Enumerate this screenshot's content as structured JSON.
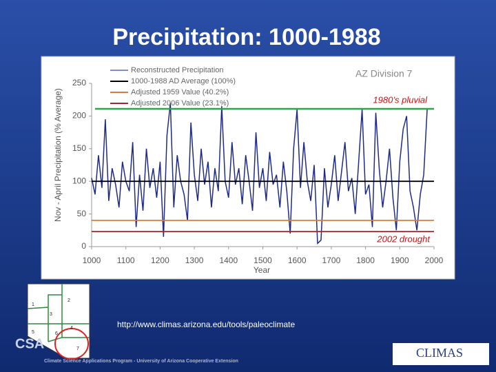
{
  "chart_data": {
    "type": "line",
    "title": "Precipitation: 1000-1988",
    "subtitle": "AZ Division 7",
    "x_label": "Year",
    "y_label": "Nov - April Precipitation (% Average)",
    "xlim": [
      1000,
      2000
    ],
    "xticks": [
      1000,
      1100,
      1200,
      1300,
      1400,
      1500,
      1600,
      1700,
      1800,
      1900,
      2000
    ],
    "ylim": [
      0,
      250
    ],
    "yticks": [
      0,
      50,
      100,
      150,
      200,
      250
    ],
    "x": [
      1000,
      1010,
      1020,
      1030,
      1040,
      1050,
      1060,
      1070,
      1080,
      1090,
      1100,
      1110,
      1120,
      1130,
      1140,
      1150,
      1160,
      1170,
      1180,
      1190,
      1200,
      1210,
      1220,
      1230,
      1240,
      1250,
      1260,
      1270,
      1280,
      1290,
      1300,
      1310,
      1320,
      1330,
      1340,
      1350,
      1360,
      1370,
      1380,
      1390,
      1400,
      1410,
      1420,
      1430,
      1440,
      1450,
      1460,
      1470,
      1480,
      1490,
      1500,
      1510,
      1520,
      1530,
      1540,
      1550,
      1560,
      1570,
      1580,
      1590,
      1600,
      1610,
      1620,
      1630,
      1640,
      1650,
      1660,
      1670,
      1680,
      1690,
      1700,
      1710,
      1720,
      1730,
      1740,
      1750,
      1760,
      1770,
      1780,
      1790,
      1800,
      1810,
      1820,
      1830,
      1840,
      1850,
      1860,
      1870,
      1880,
      1890,
      1900,
      1910,
      1920,
      1930,
      1940,
      1950,
      1960,
      1970,
      1980
    ],
    "series": [
      {
        "name": "Reconstructed Precipitation",
        "color": "#1f2a86",
        "legend_color": "#7f8cc8",
        "values": [
          105,
          80,
          140,
          90,
          195,
          70,
          120,
          95,
          60,
          130,
          100,
          85,
          160,
          30,
          110,
          55,
          150,
          90,
          120,
          75,
          130,
          15,
          170,
          220,
          60,
          140,
          100,
          80,
          40,
          190,
          110,
          70,
          150,
          95,
          130,
          60,
          120,
          85,
          215,
          100,
          75,
          160,
          95,
          120,
          65,
          140,
          100,
          55,
          175,
          90,
          120,
          70,
          145,
          95,
          110,
          60,
          130,
          85,
          20,
          150,
          210,
          90,
          160,
          100,
          70,
          125,
          5,
          10,
          120,
          60,
          95,
          140,
          70,
          115,
          160,
          85,
          105,
          50,
          130,
          210,
          80,
          95,
          30,
          205,
          120,
          60,
          100,
          150,
          75,
          25,
          130,
          180,
          200,
          85,
          60,
          25,
          80,
          110,
          210
        ]
      }
    ],
    "reference_lines": [
      {
        "name": "1000-1988 AD Average (100%)",
        "value": 100,
        "color": "#000000"
      },
      {
        "name": "Adjusted 1959 Value (40.2%)",
        "value": 40.2,
        "color": "#e07a30"
      },
      {
        "name": "Adjusted 2006 Value (23.1%)",
        "value": 23.1,
        "color": "#a0282a"
      }
    ],
    "annotations": [
      {
        "text": "1980’s pluvial",
        "value": 211,
        "color": "#22aa44"
      },
      {
        "text": "2002 drought"
      }
    ],
    "url": "http://www.climas.arizona.edu/tools/paleoclimate",
    "footer": "Climate Science Applications Program - University of Arizona Cooperative Extension",
    "logo": "CLIMAS",
    "logo_left": "CSA",
    "map_divisions": [
      "1",
      "2",
      "3",
      "4",
      "5",
      "6",
      "7"
    ]
  }
}
